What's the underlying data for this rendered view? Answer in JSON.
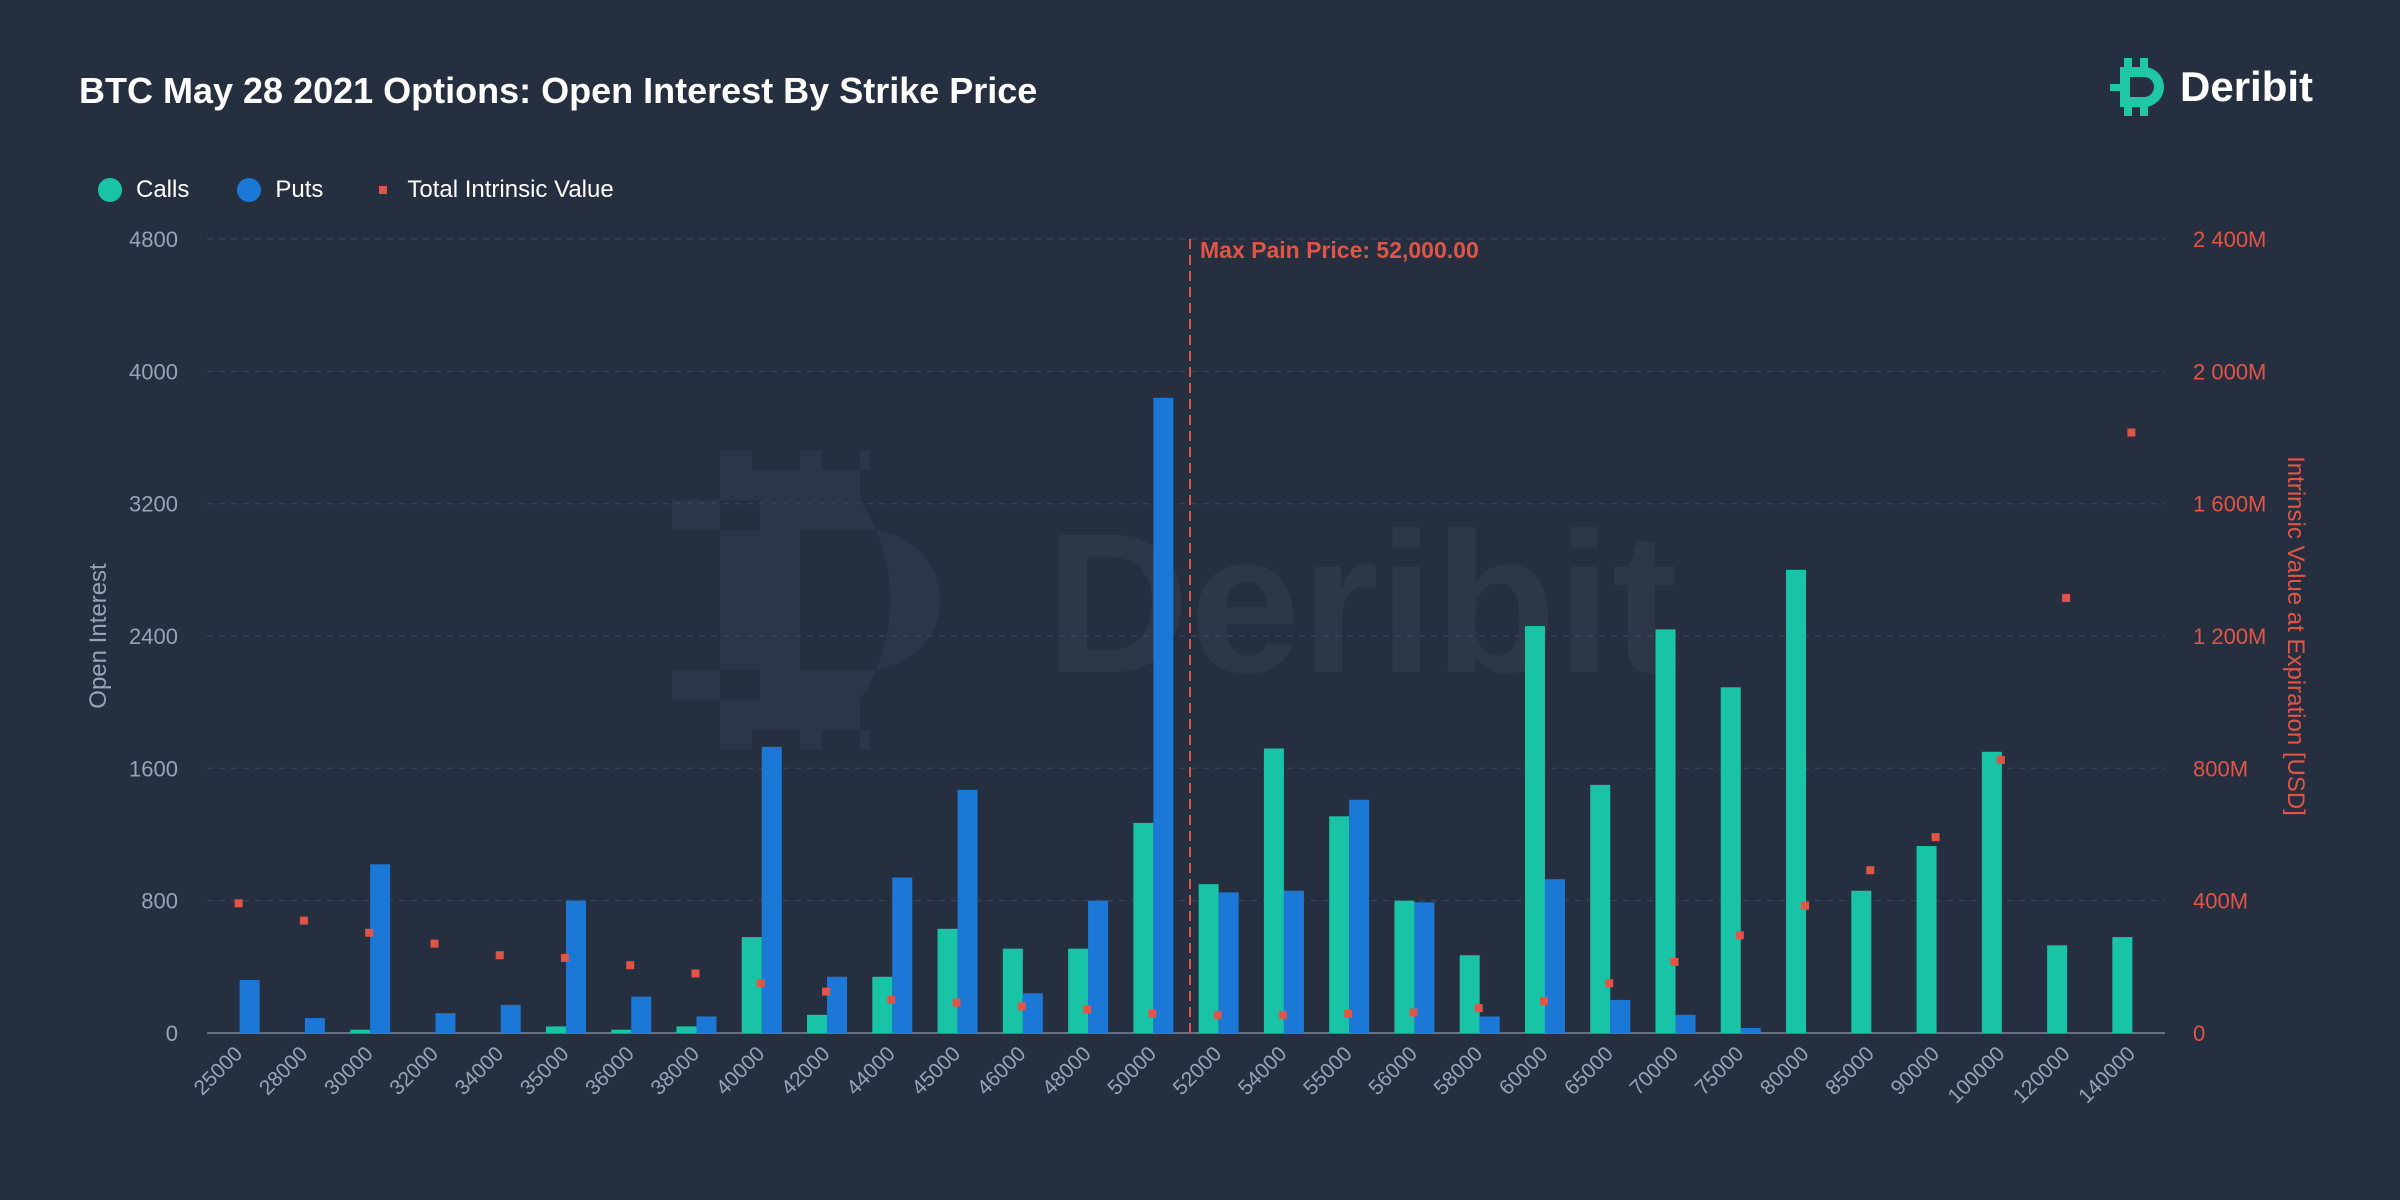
{
  "title": "BTC May 28 2021 Options: Open Interest By Strike Price",
  "brand": {
    "name": "Deribit",
    "icon": "deribit-logo-icon",
    "color": "#1ec8a5"
  },
  "colors": {
    "calls": "#19c4a6",
    "puts": "#1c78d6",
    "intrinsic": "#e05546",
    "background": "#262f40",
    "grid": "#36425a",
    "axis_text": "#9aa3b5"
  },
  "chart_data": {
    "type": "bar",
    "title": "BTC May 28 2021 Options: Open Interest By Strike Price",
    "categories": [
      "25000",
      "28000",
      "30000",
      "32000",
      "34000",
      "35000",
      "36000",
      "38000",
      "40000",
      "42000",
      "44000",
      "45000",
      "46000",
      "48000",
      "50000",
      "52000",
      "54000",
      "55000",
      "56000",
      "58000",
      "60000",
      "65000",
      "70000",
      "75000",
      "80000",
      "85000",
      "90000",
      "100000",
      "120000",
      "140000"
    ],
    "series": [
      {
        "name": "Calls",
        "axis": "left",
        "type": "bar",
        "values": [
          0,
          0,
          20,
          0,
          0,
          40,
          20,
          40,
          580,
          110,
          340,
          630,
          510,
          510,
          1270,
          900,
          1720,
          1310,
          800,
          470,
          2460,
          1500,
          2440,
          2090,
          2800,
          860,
          1130,
          1700,
          530,
          580
        ]
      },
      {
        "name": "Puts",
        "axis": "left",
        "type": "bar",
        "values": [
          320,
          90,
          1020,
          120,
          170,
          800,
          220,
          100,
          1730,
          340,
          940,
          1470,
          240,
          800,
          3840,
          850,
          860,
          1410,
          790,
          100,
          930,
          200,
          110,
          30,
          0,
          0,
          0,
          0,
          0,
          0
        ]
      },
      {
        "name": "Total Intrinsic Value",
        "axis": "right",
        "type": "scatter",
        "values": [
          392,
          340,
          303,
          270,
          235,
          227,
          205,
          180,
          150,
          125,
          100,
          92,
          80,
          72,
          58,
          55,
          55,
          58,
          62,
          75,
          97,
          150,
          215,
          295,
          385,
          492,
          592,
          825,
          1315,
          1815
        ]
      }
    ],
    "y_left": {
      "label": "Open Interest",
      "min": 0,
      "max": 4800,
      "ticks": [
        "0",
        "800",
        "1600",
        "2400",
        "3200",
        "4000",
        "4800"
      ]
    },
    "y_right": {
      "label": "Intrinsic Value at Expiration [USD]",
      "min": 0,
      "max": 2400,
      "unit": "M",
      "ticks": [
        "0",
        "400M",
        "800M",
        "1 200M",
        "1 600M",
        "2 000M",
        "2 400M"
      ]
    },
    "annotation": {
      "label": "Max Pain Price: 52,000.00",
      "category": "52000"
    },
    "grid": true,
    "legend_position": "top-left"
  }
}
